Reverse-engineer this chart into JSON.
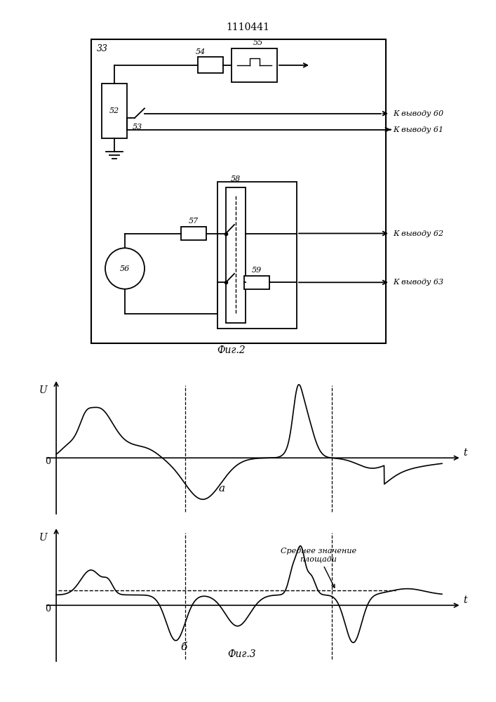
{
  "title": "1110441",
  "fig2_label": "33",
  "fig_caption1": "Фиг.2",
  "fig_caption2": "Фиг.3",
  "label_a": "а",
  "label_b": "б",
  "annotation": "Среднее значение\nплощади",
  "bg_color": "#ffffff",
  "line_color": "#000000",
  "output_labels": [
    "К выводу 60",
    "К выводу 61",
    "К выводу 62",
    "К выводу 63"
  ]
}
